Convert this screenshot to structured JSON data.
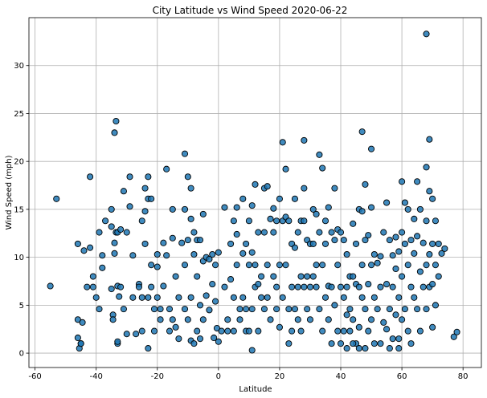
{
  "chart_data": {
    "type": "scatter",
    "title": "City Latitude vs Wind Speed 2020-06-22",
    "xlabel": "Latitude",
    "ylabel": "Wind Speed (mph)",
    "xlim": [
      -62,
      86
    ],
    "ylim": [
      -1.5,
      35
    ],
    "xticks": [
      -60,
      -40,
      -20,
      0,
      20,
      40,
      60,
      80
    ],
    "yticks": [
      0,
      5,
      10,
      15,
      20,
      25,
      30
    ],
    "grid": true,
    "legend": "none",
    "marker_color": "#1f77b4",
    "marker_edge_color": "#000000",
    "points": [
      [
        -55,
        7
      ],
      [
        -53,
        16.1
      ],
      [
        -46,
        3.5
      ],
      [
        -46,
        11.4
      ],
      [
        -46,
        1.6
      ],
      [
        -45.5,
        0.5
      ],
      [
        -45,
        1
      ],
      [
        -44.5,
        3.2
      ],
      [
        -44,
        10.7
      ],
      [
        -43,
        6.9
      ],
      [
        -42,
        18.4
      ],
      [
        -42,
        11
      ],
      [
        -41,
        8
      ],
      [
        -41,
        6.9
      ],
      [
        -40,
        5.8
      ],
      [
        -39,
        12.6
      ],
      [
        -39,
        4.6
      ],
      [
        -38,
        10.2
      ],
      [
        -38,
        8.9
      ],
      [
        -37,
        13.8
      ],
      [
        -35,
        15
      ],
      [
        -35,
        13.2
      ],
      [
        -35,
        6.7
      ],
      [
        -34.5,
        4
      ],
      [
        -34.5,
        3.5
      ],
      [
        -34,
        23
      ],
      [
        -34,
        11.5
      ],
      [
        -34,
        10.4
      ],
      [
        -33.5,
        24.2
      ],
      [
        -33.5,
        12.6
      ],
      [
        -33,
        12.6
      ],
      [
        -33,
        7
      ],
      [
        -33,
        1
      ],
      [
        -32.5,
        5.9
      ],
      [
        -32,
        12.9
      ],
      [
        -32,
        6.9
      ],
      [
        -31,
        16.9
      ],
      [
        -31,
        4.6
      ],
      [
        -30,
        12.6
      ],
      [
        -30,
        2
      ],
      [
        -29,
        18.4
      ],
      [
        -29,
        15.3
      ],
      [
        -28,
        10.2
      ],
      [
        -28,
        5.8
      ],
      [
        -27,
        2
      ],
      [
        -26,
        7.2
      ],
      [
        -26,
        6.9
      ],
      [
        -25,
        13.8
      ],
      [
        -25,
        5.8
      ],
      [
        -25,
        2.3
      ],
      [
        -24,
        17.2
      ],
      [
        -24,
        14.8
      ],
      [
        -24,
        11.4
      ],
      [
        -23,
        18.4
      ],
      [
        -23,
        16.1
      ],
      [
        -23,
        5.8
      ],
      [
        -22,
        16.1
      ],
      [
        -22,
        9.2
      ],
      [
        -22,
        6.9
      ],
      [
        -21,
        4.6
      ],
      [
        -21,
        2.3
      ],
      [
        -20,
        10.3
      ],
      [
        -20,
        9
      ],
      [
        -20,
        5.8
      ],
      [
        -19,
        4.6
      ],
      [
        -19,
        3.5
      ],
      [
        -18,
        11.5
      ],
      [
        -18,
        7
      ],
      [
        -17,
        19.2
      ],
      [
        -17,
        10.2
      ],
      [
        -16,
        4.6
      ],
      [
        -16,
        2.3
      ],
      [
        -15,
        15
      ],
      [
        -15,
        12
      ],
      [
        -15,
        3.5
      ],
      [
        -14,
        8
      ],
      [
        -14,
        2.7
      ],
      [
        -13,
        5.8
      ],
      [
        -13,
        1.5
      ],
      [
        -12,
        11.5
      ],
      [
        -11,
        20.8
      ],
      [
        -11,
        15
      ],
      [
        -11,
        9.2
      ],
      [
        -11,
        4.6
      ],
      [
        -10,
        18.4
      ],
      [
        -10,
        11.8
      ],
      [
        -10,
        3.5
      ],
      [
        -9,
        17.2
      ],
      [
        -9,
        14
      ],
      [
        -9,
        5.8
      ],
      [
        -9,
        1.3
      ],
      [
        -8,
        12.6
      ],
      [
        -8,
        10.3
      ],
      [
        -8,
        1
      ],
      [
        -7,
        11.8
      ],
      [
        -7,
        8
      ],
      [
        -7,
        2.3
      ],
      [
        -6,
        11.8
      ],
      [
        -6,
        5
      ],
      [
        -6,
        1.5
      ],
      [
        -5,
        14.5
      ],
      [
        -5,
        9.6
      ],
      [
        -5,
        3.5
      ],
      [
        -4,
        10
      ],
      [
        -4,
        6
      ],
      [
        -3,
        9.8
      ],
      [
        -3,
        4.5
      ],
      [
        -2,
        10.3
      ],
      [
        -2,
        7.2
      ],
      [
        -1.5,
        1.6
      ],
      [
        -1,
        9.2
      ],
      [
        -1,
        5.4
      ],
      [
        -0.5,
        2.6
      ],
      [
        0,
        10.5
      ],
      [
        0,
        1.2
      ],
      [
        1,
        2.3
      ],
      [
        2,
        15.2
      ],
      [
        2,
        6.9
      ],
      [
        3,
        3.5
      ],
      [
        3,
        2.3
      ],
      [
        4,
        11.4
      ],
      [
        4,
        7.7
      ],
      [
        5,
        13.8
      ],
      [
        5,
        5.8
      ],
      [
        5,
        2.3
      ],
      [
        6,
        15.2
      ],
      [
        6,
        12.4
      ],
      [
        6,
        9.2
      ],
      [
        7,
        4.6
      ],
      [
        7,
        3.5
      ],
      [
        8,
        16.1
      ],
      [
        8,
        10.4
      ],
      [
        8,
        5.8
      ],
      [
        9,
        11.4
      ],
      [
        9,
        4.6
      ],
      [
        9,
        2.3
      ],
      [
        10,
        13.8
      ],
      [
        10,
        9.2
      ],
      [
        10,
        2.3
      ],
      [
        11,
        15.4
      ],
      [
        11,
        10.5
      ],
      [
        11,
        4.6
      ],
      [
        11,
        0.3
      ],
      [
        12,
        17.6
      ],
      [
        12,
        9.2
      ],
      [
        12,
        6.9
      ],
      [
        13,
        12.6
      ],
      [
        13,
        7.2
      ],
      [
        13,
        2.3
      ],
      [
        14,
        8
      ],
      [
        14,
        5.8
      ],
      [
        15,
        17.2
      ],
      [
        15,
        12.6
      ],
      [
        15,
        4.6
      ],
      [
        16,
        17.4
      ],
      [
        16,
        9.2
      ],
      [
        16,
        5.8
      ],
      [
        17,
        14
      ],
      [
        17,
        3.5
      ],
      [
        18,
        15.1
      ],
      [
        18,
        12.6
      ],
      [
        18,
        8
      ],
      [
        19,
        13.8
      ],
      [
        19,
        6.9
      ],
      [
        19,
        4.6
      ],
      [
        20,
        16.1
      ],
      [
        20,
        9.2
      ],
      [
        20,
        2.7
      ],
      [
        21,
        22
      ],
      [
        21,
        13.8
      ],
      [
        21,
        5.8
      ],
      [
        22,
        19.2
      ],
      [
        22,
        14.2
      ],
      [
        22,
        9.2
      ],
      [
        23,
        13.8
      ],
      [
        23,
        4.6
      ],
      [
        23,
        1
      ],
      [
        24,
        11.4
      ],
      [
        24,
        6.9
      ],
      [
        24,
        2.3
      ],
      [
        25,
        16.1
      ],
      [
        25,
        11
      ],
      [
        25,
        4.6
      ],
      [
        26,
        12.6
      ],
      [
        26,
        6.9
      ],
      [
        26,
        3.5
      ],
      [
        27,
        13.8
      ],
      [
        27,
        8
      ],
      [
        27,
        2.3
      ],
      [
        28,
        22.2
      ],
      [
        28,
        17.2
      ],
      [
        28,
        13.8
      ],
      [
        28,
        6.9
      ],
      [
        29,
        11.8
      ],
      [
        29,
        8
      ],
      [
        29,
        4.6
      ],
      [
        30,
        11.4
      ],
      [
        30,
        6.9
      ],
      [
        30,
        3.5
      ],
      [
        31,
        15
      ],
      [
        31,
        11.4
      ],
      [
        31,
        8
      ],
      [
        32,
        14.5
      ],
      [
        32,
        9.2
      ],
      [
        32,
        6.9
      ],
      [
        33,
        20.7
      ],
      [
        33,
        12.6
      ],
      [
        33,
        4.6
      ],
      [
        34,
        19.3
      ],
      [
        34,
        9.2
      ],
      [
        34,
        2.3
      ],
      [
        35,
        13.8
      ],
      [
        35,
        11.4
      ],
      [
        35,
        5.8
      ],
      [
        36,
        15.2
      ],
      [
        36,
        7
      ],
      [
        36,
        3.5
      ],
      [
        37,
        12.6
      ],
      [
        37,
        6.9
      ],
      [
        37,
        1
      ],
      [
        38,
        17.2
      ],
      [
        38,
        11.8
      ],
      [
        38,
        5
      ],
      [
        39,
        12.9
      ],
      [
        39,
        9.2
      ],
      [
        39,
        2.3
      ],
      [
        40,
        12.6
      ],
      [
        40,
        6.9
      ],
      [
        40,
        1
      ],
      [
        41,
        11.8
      ],
      [
        41,
        5.8
      ],
      [
        41,
        2.3
      ],
      [
        42,
        10.3
      ],
      [
        42,
        6.9
      ],
      [
        42,
        0.5
      ],
      [
        43,
        8
      ],
      [
        43,
        4.6
      ],
      [
        43,
        2.3
      ],
      [
        44,
        13.5
      ],
      [
        44,
        8
      ],
      [
        44,
        3.5
      ],
      [
        45,
        11.4
      ],
      [
        45,
        7.2
      ],
      [
        45,
        1
      ],
      [
        46,
        15
      ],
      [
        46,
        6.9
      ],
      [
        46,
        2.7
      ],
      [
        47,
        23.1
      ],
      [
        47,
        14.8
      ],
      [
        47,
        9.2
      ],
      [
        47,
        5.8
      ],
      [
        48,
        17.6
      ],
      [
        48,
        11.8
      ],
      [
        48,
        4.6
      ],
      [
        48,
        0.5
      ],
      [
        49,
        12.3
      ],
      [
        49,
        7.2
      ],
      [
        49,
        2.3
      ],
      [
        50,
        21.3
      ],
      [
        50,
        15.2
      ],
      [
        50,
        9.2
      ],
      [
        50,
        3.5
      ],
      [
        51,
        10.3
      ],
      [
        51,
        5.8
      ],
      [
        51,
        1
      ],
      [
        52,
        9.4
      ],
      [
        52,
        4.6
      ],
      [
        53,
        10.1
      ],
      [
        53,
        6.9
      ],
      [
        54,
        12.6
      ],
      [
        54,
        3.2
      ],
      [
        55,
        15.7
      ],
      [
        55,
        7.2
      ],
      [
        55,
        2.5
      ],
      [
        56,
        11.8
      ],
      [
        56,
        4.6
      ],
      [
        57,
        10.2
      ],
      [
        57,
        6.9
      ],
      [
        57,
        1.5
      ],
      [
        58,
        12.1
      ],
      [
        58,
        8.8
      ],
      [
        58,
        4
      ],
      [
        59,
        10.6
      ],
      [
        59,
        5.8
      ],
      [
        59,
        0.5
      ],
      [
        60,
        17.9
      ],
      [
        60,
        12.6
      ],
      [
        60,
        8
      ],
      [
        60,
        3.5
      ],
      [
        61,
        15.7
      ],
      [
        61,
        11.4
      ],
      [
        61,
        4.6
      ],
      [
        62,
        15
      ],
      [
        62,
        9.2
      ],
      [
        62,
        2.3
      ],
      [
        63,
        11.8
      ],
      [
        63,
        6.9
      ],
      [
        63,
        1
      ],
      [
        64,
        14
      ],
      [
        64,
        10.4
      ],
      [
        64,
        5.8
      ],
      [
        65,
        17.9
      ],
      [
        65,
        12.2
      ],
      [
        65,
        4.6
      ],
      [
        66,
        15
      ],
      [
        66,
        8.5
      ],
      [
        66,
        2.3
      ],
      [
        67,
        11.5
      ],
      [
        67,
        6.9
      ],
      [
        68,
        19.4
      ],
      [
        68,
        33.3
      ],
      [
        68,
        13.8
      ],
      [
        68,
        9.2
      ],
      [
        68,
        4.6
      ],
      [
        69,
        22.3
      ],
      [
        69,
        16.9
      ],
      [
        69,
        10.3
      ],
      [
        69,
        6.9
      ],
      [
        70,
        16.1
      ],
      [
        70,
        11.4
      ],
      [
        70,
        7.2
      ],
      [
        70,
        2.7
      ],
      [
        71,
        13.8
      ],
      [
        71,
        9.2
      ],
      [
        71,
        5
      ],
      [
        72,
        11.4
      ],
      [
        72,
        8
      ],
      [
        73,
        10.4
      ],
      [
        74,
        10.9
      ],
      [
        77,
        1.7
      ],
      [
        78,
        2.2
      ],
      [
        42,
        4
      ],
      [
        44,
        1
      ],
      [
        46,
        0.5
      ],
      [
        53,
        1
      ],
      [
        56,
        0.5
      ],
      [
        59,
        1.5
      ],
      [
        -45,
        1
      ],
      [
        -33,
        1.2
      ],
      [
        -23,
        0.5
      ]
    ]
  }
}
